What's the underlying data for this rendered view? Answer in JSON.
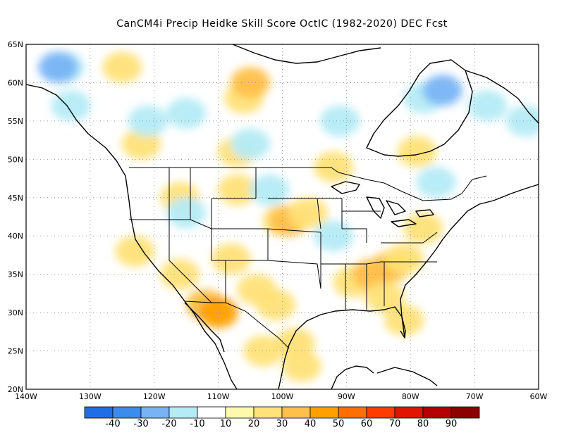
{
  "title": "CanCM4i Precip Heidke Skill Score OctIC (1982-2020) DEC Fcst",
  "map": {
    "lon_range": [
      -140,
      -60
    ],
    "lat_range": [
      20,
      65
    ],
    "lat_ticks": [
      "65N",
      "60N",
      "55N",
      "50N",
      "45N",
      "40N",
      "35N",
      "30N",
      "25N",
      "20N"
    ],
    "lon_ticks": [
      "140W",
      "130W",
      "120W",
      "110W",
      "100W",
      "90W",
      "80W",
      "70W",
      "60W"
    ],
    "grid": true,
    "grid_style": "dotted"
  },
  "colorbar": {
    "colors": [
      "#1e6ee6",
      "#3c8cf0",
      "#78b4f5",
      "#b4ebf5",
      "#ffffff",
      "#fffaaa",
      "#ffe178",
      "#ffc04a",
      "#ffa000",
      "#ff6e00",
      "#ff3c00",
      "#e11400",
      "#b40000",
      "#8c0000"
    ],
    "labels": [
      "-40",
      "-30",
      "-20",
      "-10",
      "10",
      "20",
      "30",
      "40",
      "50",
      "60",
      "70",
      "80",
      "90"
    ]
  },
  "shading": [
    {
      "lon": -112,
      "lat": 31,
      "level": "30"
    },
    {
      "lon": -110,
      "lat": 30,
      "level": "40"
    },
    {
      "lon": -116,
      "lat": 35,
      "level": "20"
    },
    {
      "lon": -108,
      "lat": 37,
      "level": "20"
    },
    {
      "lon": -104,
      "lat": 33,
      "level": "20"
    },
    {
      "lon": -101,
      "lat": 31,
      "level": "20"
    },
    {
      "lon": -98,
      "lat": 26,
      "level": "20"
    },
    {
      "lon": -97,
      "lat": 23,
      "level": "20"
    },
    {
      "lon": -103,
      "lat": 25,
      "level": "20"
    },
    {
      "lon": -100,
      "lat": 42,
      "level": "20"
    },
    {
      "lon": -99,
      "lat": 42,
      "level": "30"
    },
    {
      "lon": -96,
      "lat": 43,
      "level": "20"
    },
    {
      "lon": -107,
      "lat": 46,
      "level": "20"
    },
    {
      "lon": -89,
      "lat": 34,
      "level": "20"
    },
    {
      "lon": -86,
      "lat": 35,
      "level": "30"
    },
    {
      "lon": -83,
      "lat": 36,
      "level": "30"
    },
    {
      "lon": -81,
      "lat": 37,
      "level": "20"
    },
    {
      "lon": -84,
      "lat": 32,
      "level": "20"
    },
    {
      "lon": -81,
      "lat": 29,
      "level": "20"
    },
    {
      "lon": -78,
      "lat": 41,
      "level": "20"
    },
    {
      "lon": -79,
      "lat": 51,
      "level": "20"
    },
    {
      "lon": -92,
      "lat": 49,
      "level": "20"
    },
    {
      "lon": -123,
      "lat": 38,
      "level": "20"
    },
    {
      "lon": -116,
      "lat": 45,
      "level": "20"
    },
    {
      "lon": -106,
      "lat": 58,
      "level": "20"
    },
    {
      "lon": -105,
      "lat": 60,
      "level": "30"
    },
    {
      "lon": -125,
      "lat": 62,
      "level": "20"
    },
    {
      "lon": -122,
      "lat": 52,
      "level": "20"
    },
    {
      "lon": -107,
      "lat": 51,
      "level": "20"
    },
    {
      "lon": -115,
      "lat": 43,
      "level": "-10"
    },
    {
      "lon": -102,
      "lat": 46,
      "level": "-10"
    },
    {
      "lon": -105,
      "lat": 52,
      "level": "-10"
    },
    {
      "lon": -121,
      "lat": 55,
      "level": "-10"
    },
    {
      "lon": -133,
      "lat": 57,
      "level": "-10"
    },
    {
      "lon": -134,
      "lat": 62,
      "level": "-10"
    },
    {
      "lon": -135,
      "lat": 62,
      "level": "-20"
    },
    {
      "lon": -115,
      "lat": 56,
      "level": "-10"
    },
    {
      "lon": -91,
      "lat": 55,
      "level": "-10"
    },
    {
      "lon": -78,
      "lat": 58,
      "level": "-10"
    },
    {
      "lon": -75,
      "lat": 59,
      "level": "-20"
    },
    {
      "lon": -68,
      "lat": 57,
      "level": "-10"
    },
    {
      "lon": -62,
      "lat": 55,
      "level": "-10"
    },
    {
      "lon": -92,
      "lat": 40,
      "level": "-10"
    },
    {
      "lon": -76,
      "lat": 47,
      "level": "-10"
    }
  ]
}
